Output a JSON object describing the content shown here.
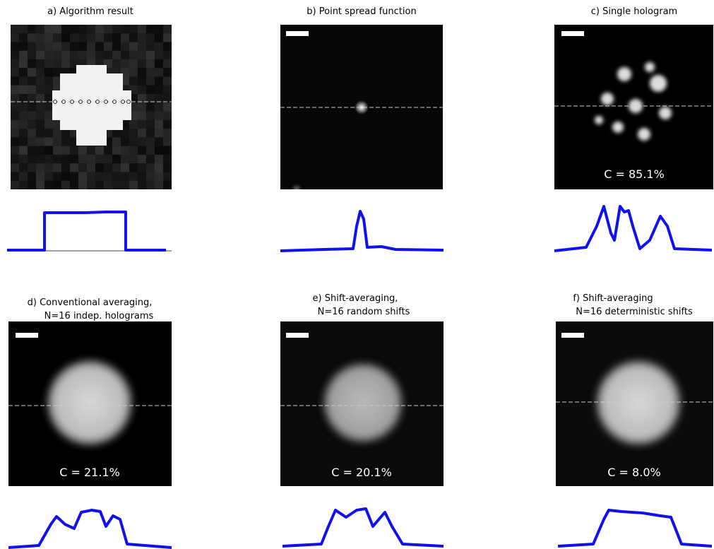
{
  "panels": [
    {
      "title": "a) Algorithm result"
    },
    {
      "title": "b) Point spread function"
    },
    {
      "title": "c) Single hologram",
      "contrast": "C = 85.1%"
    },
    {
      "title": "d) Conventional averaging,",
      "subtitle": "N=16 indep. holograms",
      "contrast": "C = 21.1%"
    },
    {
      "title": "e) Shift-averaging,",
      "subtitle": "N=16 random shifts",
      "contrast": "C = 20.1%"
    },
    {
      "title": "f) Shift-averaging",
      "subtitle": "N=16 deterministic shifts",
      "contrast": "C = 8.0%"
    }
  ]
}
